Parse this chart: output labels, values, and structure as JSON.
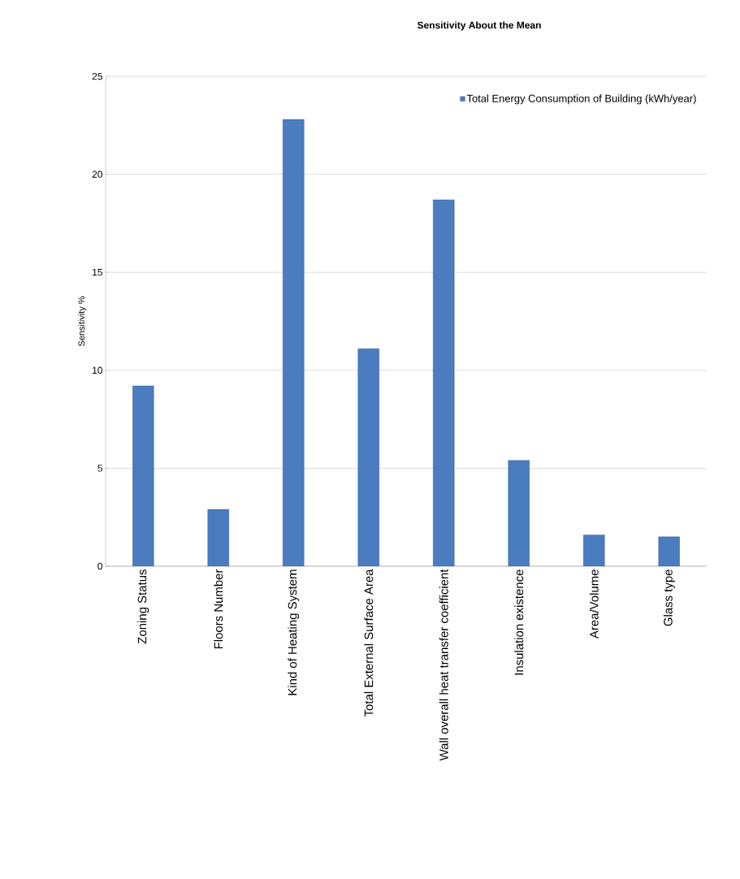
{
  "chart_data": {
    "type": "bar",
    "title": "Sensitivity About the Mean",
    "ylabel": "Sensitivity  %",
    "categories": [
      "Zoning Status",
      "Floors Number",
      "Kind of Heating System",
      "Total External Surface Area",
      "Wall overall heat transfer coefficient",
      "Insulation existence",
      "Area/Volume",
      "Glass type"
    ],
    "series": [
      {
        "name": "Total Energy Consumption of Building (kWh/year)",
        "color": "#4a7cc0",
        "values": [
          9.2,
          2.9,
          22.8,
          11.1,
          18.7,
          5.4,
          1.6,
          1.5
        ]
      }
    ],
    "ylim": [
      0,
      25
    ],
    "yticks": [
      0,
      5,
      10,
      15,
      20,
      25
    ],
    "grid": "y",
    "legend": "top right"
  }
}
